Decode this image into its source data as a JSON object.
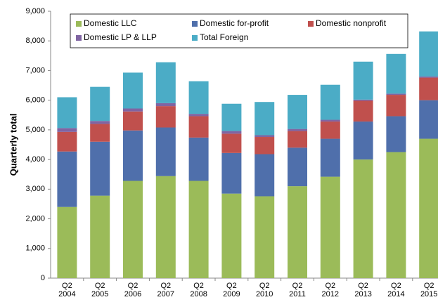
{
  "chart_data": {
    "type": "stacked_bar",
    "y_label": "Quarterly total",
    "categories": [
      "Q2\n2004",
      "Q2\n2005",
      "Q2\n2006",
      "Q2\n2007",
      "Q2\n2008",
      "Q2\n2009",
      "Q2\n2010",
      "Q2\n2011",
      "Q2\n2012",
      "Q2\n2013",
      "Q2\n2014",
      "Q2\n2015"
    ],
    "series": [
      {
        "name": "Domestic LLC",
        "color": "#9bbb59",
        "values": [
          2400,
          2780,
          3280,
          3440,
          3280,
          2850,
          2760,
          3100,
          3420,
          4000,
          4250,
          4700
        ]
      },
      {
        "name": "Domestic for-profit",
        "color": "#4f6fab",
        "values": [
          1870,
          1820,
          1700,
          1640,
          1460,
          1370,
          1420,
          1300,
          1280,
          1280,
          1210,
          1300
        ]
      },
      {
        "name": "Domestic nonprofit",
        "color": "#c0504d",
        "values": [
          660,
          600,
          640,
          720,
          720,
          650,
          580,
          560,
          580,
          700,
          720,
          760
        ]
      },
      {
        "name": "Domestic LP & LLP",
        "color": "#8064a2",
        "values": [
          130,
          100,
          100,
          100,
          80,
          90,
          60,
          70,
          60,
          40,
          40,
          40
        ]
      },
      {
        "name": "Total Foreign",
        "color": "#4bacc6",
        "values": [
          1040,
          1150,
          1210,
          1380,
          1100,
          920,
          1120,
          1150,
          1180,
          1280,
          1340,
          1520
        ]
      }
    ],
    "ylim": [
      0,
      9000
    ],
    "yticks": [
      0,
      {
        "value": 1000,
        "label": "1,000"
      },
      {
        "value": 2000,
        "label": "2,000"
      },
      {
        "value": 3000,
        "label": "3,000"
      },
      {
        "value": 4000,
        "label": "4,000"
      },
      {
        "value": 5000,
        "label": "5,000"
      },
      {
        "value": 6000,
        "label": "6,000"
      },
      {
        "value": 7000,
        "label": "7,000"
      },
      {
        "value": 8000,
        "label": "8,000"
      },
      {
        "value": 9000,
        "label": "9,000"
      }
    ],
    "grid": false,
    "legend": "top"
  }
}
